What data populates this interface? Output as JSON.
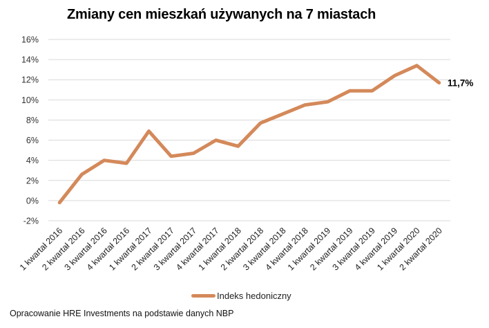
{
  "title": "Zmiany cen mieszkań używanych na 7 miastach",
  "legend": {
    "label": "Indeks hedoniczny",
    "color": "#D4895A"
  },
  "end_label": "11,7%",
  "footer": "Opracowanie HRE Investments na podstawie danych NBP",
  "chart_data": {
    "type": "line",
    "title": "Zmiany cen mieszkań używanych na 7 miastach",
    "xlabel": "",
    "ylabel": "",
    "ylim": [
      -2,
      16
    ],
    "yticks": [
      "-2%",
      "0%",
      "2%",
      "4%",
      "6%",
      "8%",
      "10%",
      "12%",
      "14%",
      "16%"
    ],
    "ytick_values": [
      -2,
      0,
      2,
      4,
      6,
      8,
      10,
      12,
      14,
      16
    ],
    "grid": true,
    "legend_position": "bottom",
    "categories": [
      "1 kwartał 2016",
      "2 kwartał 2016",
      "3 kwartał 2016",
      "4 kwartał 2016",
      "1 kwartał 2017",
      "2 kwartał 2017",
      "3 kwartał 2017",
      "4 kwartał 2017",
      "1 kwartał 2018",
      "2 kwartał 2018",
      "3 kwartał 2018",
      "4 kwartał 2018",
      "1 kwartał 2019",
      "2 kwartał 2019",
      "3 kwartał 2019",
      "4 kwartał 2019",
      "1 kwartał 2020",
      "2 kwartał 2020"
    ],
    "series": [
      {
        "name": "Indeks hedoniczny",
        "color": "#D4895A",
        "values": [
          -0.2,
          2.6,
          4.0,
          3.7,
          6.9,
          4.4,
          4.7,
          6.0,
          5.4,
          7.7,
          8.6,
          9.5,
          9.8,
          10.9,
          10.9,
          12.4,
          13.4,
          11.7
        ]
      }
    ],
    "annotations": [
      {
        "category": "2 kwartał 2020",
        "text": "11,7%"
      }
    ]
  }
}
